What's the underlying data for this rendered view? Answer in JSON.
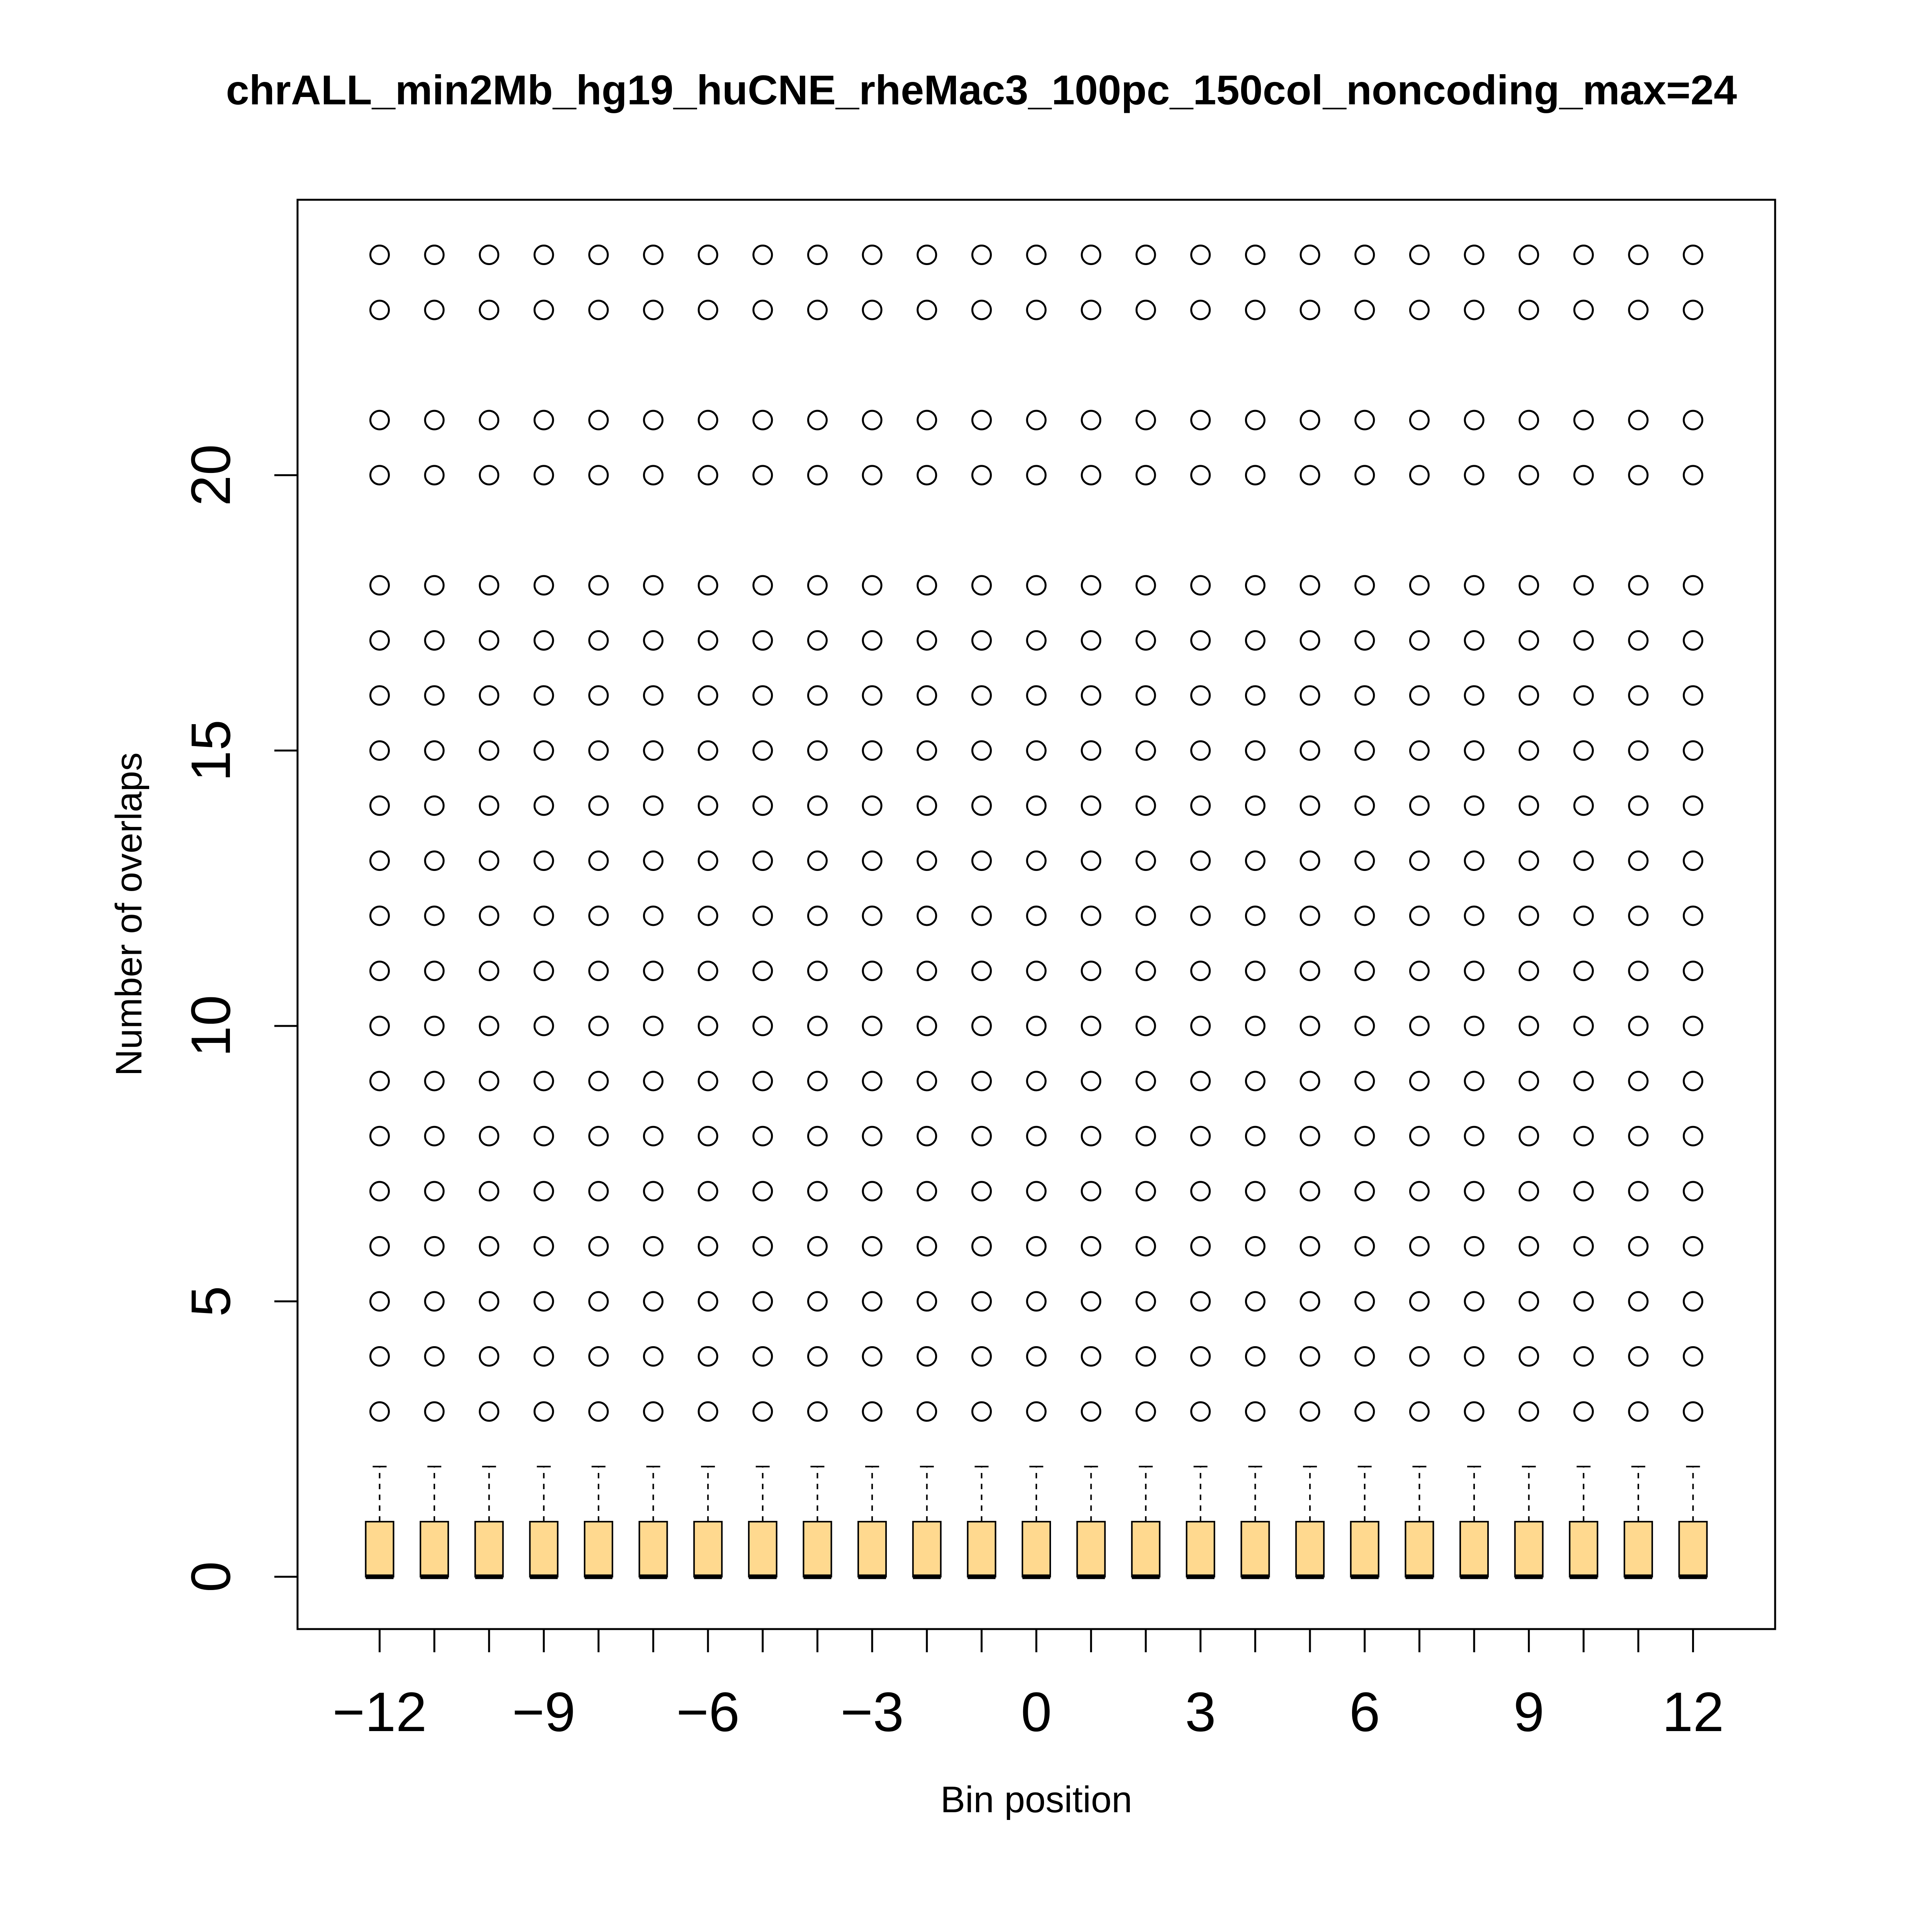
{
  "chart_data": {
    "type": "boxplot",
    "title": "chrALL_min2Mb_hg19_huCNE_rheMac3_100pc_150col_noncoding_max=24",
    "xlabel": "Bin position",
    "ylabel": "Number of overlaps",
    "categories": [
      -12,
      -11,
      -10,
      -9,
      -8,
      -7,
      -6,
      -5,
      -4,
      -3,
      -2,
      -1,
      0,
      1,
      2,
      3,
      4,
      5,
      6,
      7,
      8,
      9,
      10,
      11,
      12
    ],
    "x_tick_labels": [
      "−12",
      "−9",
      "−6",
      "−3",
      "0",
      "3",
      "6",
      "9",
      "12"
    ],
    "x_tick_label_values": [
      -12,
      -9,
      -6,
      -3,
      0,
      3,
      6,
      9,
      12
    ],
    "y_ticks": [
      0,
      5,
      10,
      15,
      20
    ],
    "ylim": [
      -0.95,
      25
    ],
    "xlim": [
      -13.5,
      13.5
    ],
    "grid": false,
    "box_stats": {
      "min": 0,
      "q1": 0,
      "median": 0,
      "q3": 1,
      "whisker_high": 2
    },
    "outliers": [
      3,
      4,
      5,
      6,
      7,
      8,
      9,
      10,
      11,
      12,
      13,
      14,
      15,
      16,
      17,
      18,
      20,
      21,
      23,
      24
    ],
    "colors": {
      "box_fill": "#FFD98F",
      "box_stroke": "#000000",
      "outlier_stroke": "#000000"
    }
  }
}
